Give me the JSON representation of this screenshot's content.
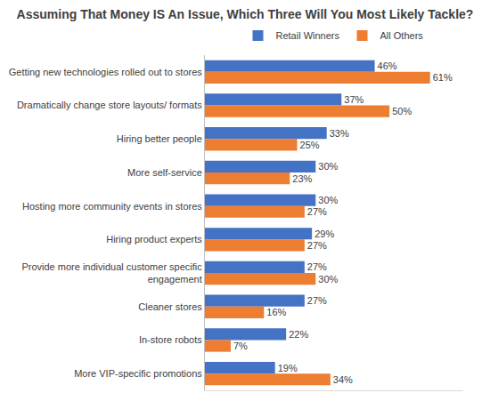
{
  "chart_data": {
    "type": "bar",
    "orientation": "horizontal",
    "title": "Assuming That Money IS An Issue, Which Three Will You Most Likely Tackle?",
    "categories": [
      "Getting new technologies rolled out to stores",
      "Dramatically change store layouts/ formats",
      "Hiring better people",
      "More self-service",
      "Hosting more community events in stores",
      "Hiring product experts",
      "Provide more individual customer specific engagement",
      "Cleaner stores",
      "In-store robots",
      "More VIP-specific promotions"
    ],
    "series": [
      {
        "name": "Retail Winners",
        "color": "#4472c4",
        "values": [
          46,
          37,
          33,
          30,
          30,
          29,
          27,
          27,
          22,
          19
        ],
        "value_labels": [
          "46%",
          "37%",
          "33%",
          "30%",
          "30%",
          "29%",
          "27%",
          "27%",
          "22%",
          "19%"
        ]
      },
      {
        "name": "All Others",
        "color": "#ed7d31",
        "values": [
          61,
          50,
          25,
          23,
          27,
          27,
          30,
          16,
          7,
          34
        ],
        "value_labels": [
          "61%",
          "50%",
          "25%",
          "23%",
          "27%",
          "27%",
          "30%",
          "16%",
          "7%",
          "34%"
        ]
      }
    ],
    "xlim": [
      0,
      70
    ],
    "grid": false,
    "legend": "top",
    "data_labels": true,
    "tick_labels": "y"
  }
}
